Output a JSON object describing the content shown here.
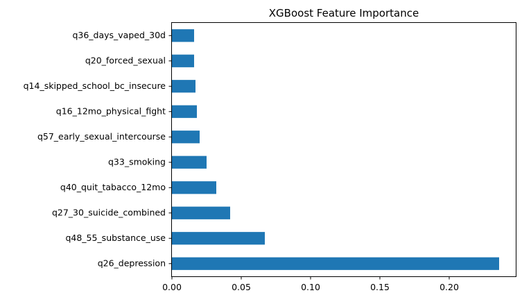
{
  "chart_data": {
    "type": "bar",
    "orientation": "horizontal",
    "title": "XGBoost Feature Importance",
    "xlabel": "",
    "ylabel": "",
    "categories": [
      "q26_depression",
      "q48_55_substance_use",
      "q27_30_suicide_combined",
      "q40_quit_tabacco_12mo",
      "q33_smoking",
      "q57_early_sexual_intercourse",
      "q16_12mo_physical_fight",
      "q14_skipped_school_bc_insecure",
      "q20_forced_sexual",
      "q36_days_vaped_30d"
    ],
    "values": [
      0.236,
      0.067,
      0.042,
      0.032,
      0.025,
      0.02,
      0.018,
      0.017,
      0.016,
      0.016
    ],
    "xlim": [
      0,
      0.248
    ],
    "xticks": [
      0.0,
      0.05,
      0.1,
      0.15,
      0.2
    ],
    "xtick_labels": [
      "0.00",
      "0.05",
      "0.10",
      "0.15",
      "0.20"
    ],
    "grid": false,
    "legend": "none",
    "bar_color": "#1f77b4"
  }
}
